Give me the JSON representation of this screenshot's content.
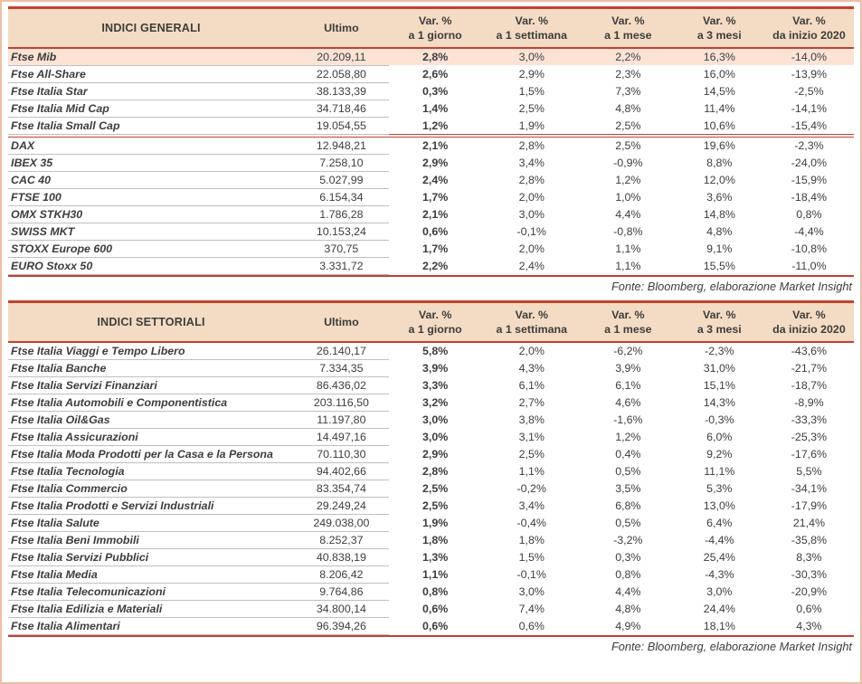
{
  "colors": {
    "accent_red": "#c4402d",
    "header_bg": "#f3dcc3",
    "highlight_row_bg": "#fce3d6",
    "frame_border": "#f0bda4",
    "row_line": "#bfbfbf",
    "text": "#3d3d3d"
  },
  "tables": [
    {
      "title": "INDICI GENERALI",
      "columns": [
        {
          "l1": "Ultimo",
          "l2": ""
        },
        {
          "l1": "Var. %",
          "l2": "a 1 giorno"
        },
        {
          "l1": "Var. %",
          "l2": "a 1 settimana"
        },
        {
          "l1": "Var. %",
          "l2": "a 1 mese"
        },
        {
          "l1": "Var. %",
          "l2": "a 3 mesi"
        },
        {
          "l1": "Var. %",
          "l2": "da inizio 2020"
        }
      ],
      "groups": [
        [
          {
            "name": "Ftse Mib",
            "values": [
              "20.209,11",
              "2,8%",
              "3,0%",
              "2,2%",
              "16,3%",
              "-14,0%"
            ],
            "highlight": true
          },
          {
            "name": "Ftse All-Share",
            "values": [
              "22.058,80",
              "2,6%",
              "2,9%",
              "2,3%",
              "16,0%",
              "-13,9%"
            ]
          },
          {
            "name": "Ftse Italia Star",
            "values": [
              "38.133,39",
              "0,3%",
              "1,5%",
              "7,3%",
              "14,5%",
              "-2,5%"
            ]
          },
          {
            "name": "Ftse Italia Mid Cap",
            "values": [
              "34.718,46",
              "1,4%",
              "2,5%",
              "4,8%",
              "11,4%",
              "-14,1%"
            ]
          },
          {
            "name": "Ftse Italia Small Cap",
            "values": [
              "19.054,55",
              "1,2%",
              "1,9%",
              "2,5%",
              "10,6%",
              "-15,4%"
            ]
          }
        ],
        [
          {
            "name": "DAX",
            "values": [
              "12.948,21",
              "2,1%",
              "2,8%",
              "2,5%",
              "19,6%",
              "-2,3%"
            ]
          },
          {
            "name": "IBEX 35",
            "values": [
              "7.258,10",
              "2,9%",
              "3,4%",
              "-0,9%",
              "8,8%",
              "-24,0%"
            ]
          },
          {
            "name": "CAC 40",
            "values": [
              "5.027,99",
              "2,4%",
              "2,8%",
              "1,2%",
              "12,0%",
              "-15,9%"
            ]
          },
          {
            "name": "FTSE 100",
            "values": [
              "6.154,34",
              "1,7%",
              "2,0%",
              "1,0%",
              "3,6%",
              "-18,4%"
            ]
          },
          {
            "name": "OMX STKH30",
            "values": [
              "1.786,28",
              "2,1%",
              "3,0%",
              "4,4%",
              "14,8%",
              "0,8%"
            ]
          },
          {
            "name": "SWISS MKT",
            "values": [
              "10.153,24",
              "0,6%",
              "-0,1%",
              "-0,8%",
              "4,8%",
              "-4,4%"
            ]
          },
          {
            "name": "STOXX Europe 600",
            "values": [
              "370,75",
              "1,7%",
              "2,0%",
              "1,1%",
              "9,1%",
              "-10,8%"
            ]
          },
          {
            "name": "EURO Stoxx 50",
            "values": [
              "3.331,72",
              "2,2%",
              "2,4%",
              "1,1%",
              "15,5%",
              "-11,0%"
            ]
          }
        ]
      ],
      "footer": "Fonte: Bloomberg, elaborazione Market Insight"
    },
    {
      "title": "INDICI SETTORIALI",
      "columns": [
        {
          "l1": "Ultimo",
          "l2": ""
        },
        {
          "l1": "Var. %",
          "l2": "a 1 giorno"
        },
        {
          "l1": "Var. %",
          "l2": "a 1 settimana"
        },
        {
          "l1": "Var. %",
          "l2": "a 1 mese"
        },
        {
          "l1": "Var. %",
          "l2": "a 3 mesi"
        },
        {
          "l1": "Var. %",
          "l2": "da inizio 2020"
        }
      ],
      "groups": [
        [
          {
            "name": "Ftse Italia Viaggi e Tempo Libero",
            "values": [
              "26.140,17",
              "5,8%",
              "2,0%",
              "-6,2%",
              "-2,3%",
              "-43,6%"
            ]
          },
          {
            "name": "Ftse Italia Banche",
            "values": [
              "7.334,35",
              "3,9%",
              "4,3%",
              "3,9%",
              "31,0%",
              "-21,7%"
            ]
          },
          {
            "name": "Ftse Italia Servizi Finanziari",
            "values": [
              "86.436,02",
              "3,3%",
              "6,1%",
              "6,1%",
              "15,1%",
              "-18,7%"
            ]
          },
          {
            "name": "Ftse Italia Automobili e Componentistica",
            "values": [
              "203.116,50",
              "3,2%",
              "2,7%",
              "4,6%",
              "14,3%",
              "-8,9%"
            ]
          },
          {
            "name": "Ftse Italia Oil&Gas",
            "values": [
              "11.197,80",
              "3,0%",
              "3,8%",
              "-1,6%",
              "-0,3%",
              "-33,3%"
            ]
          },
          {
            "name": "Ftse Italia Assicurazioni",
            "values": [
              "14.497,16",
              "3,0%",
              "3,1%",
              "1,2%",
              "6,0%",
              "-25,3%"
            ]
          },
          {
            "name": "Ftse Italia Moda Prodotti per la Casa e la Persona",
            "values": [
              "70.110,30",
              "2,9%",
              "2,5%",
              "0,4%",
              "9,2%",
              "-17,6%"
            ]
          },
          {
            "name": "Ftse Italia Tecnologia",
            "values": [
              "94.402,66",
              "2,8%",
              "1,1%",
              "0,5%",
              "11,1%",
              "5,5%"
            ]
          },
          {
            "name": "Ftse Italia Commercio",
            "values": [
              "83.354,74",
              "2,5%",
              "-0,2%",
              "3,5%",
              "5,3%",
              "-34,1%"
            ]
          },
          {
            "name": "Ftse Italia Prodotti e Servizi Industriali",
            "values": [
              "29.249,24",
              "2,5%",
              "3,4%",
              "6,8%",
              "13,0%",
              "-17,9%"
            ]
          },
          {
            "name": "Ftse Italia Salute",
            "values": [
              "249.038,00",
              "1,9%",
              "-0,4%",
              "0,5%",
              "6,4%",
              "21,4%"
            ]
          },
          {
            "name": "Ftse Italia Beni Immobili",
            "values": [
              "8.252,37",
              "1,8%",
              "1,8%",
              "-3,2%",
              "-4,4%",
              "-35,8%"
            ]
          },
          {
            "name": "Ftse Italia Servizi Pubblici",
            "values": [
              "40.838,19",
              "1,3%",
              "1,5%",
              "0,3%",
              "25,4%",
              "8,3%"
            ]
          },
          {
            "name": "Ftse Italia Media",
            "values": [
              "8.206,42",
              "1,1%",
              "-0,1%",
              "0,8%",
              "-4,3%",
              "-30,3%"
            ]
          },
          {
            "name": "Ftse Italia Telecomunicazioni",
            "values": [
              "9.764,86",
              "0,8%",
              "3,0%",
              "4,4%",
              "3,0%",
              "-20,9%"
            ]
          },
          {
            "name": "Ftse Italia Edilizia e Materiali",
            "values": [
              "34.800,14",
              "0,6%",
              "7,4%",
              "4,8%",
              "24,4%",
              "0,6%"
            ]
          },
          {
            "name": "Ftse Italia Alimentari",
            "values": [
              "96.394,26",
              "0,6%",
              "0,6%",
              "4,9%",
              "18,1%",
              "4,3%"
            ]
          }
        ]
      ],
      "footer": "Fonte: Bloomberg, elaborazione Market Insight"
    }
  ]
}
